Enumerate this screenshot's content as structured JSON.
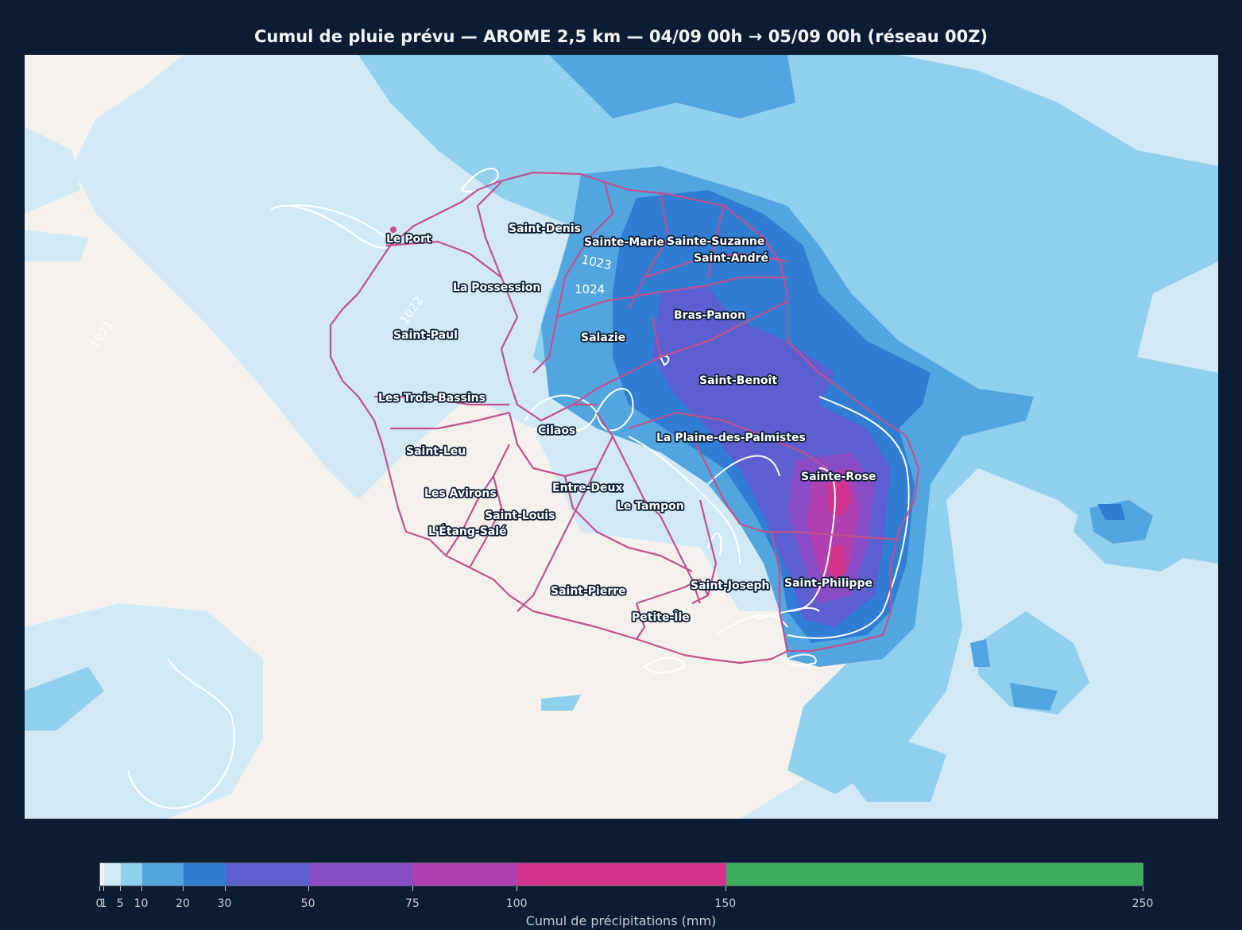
{
  "title": "Cumul de pluie prévu — AROME 2,5 km — 04/09 00h → 05/09 00h (réseau 00Z)",
  "map": {
    "communes": [
      {
        "name": "Le Port"
      },
      {
        "name": "Saint-Denis"
      },
      {
        "name": "Sainte-Marie"
      },
      {
        "name": "Sainte-Suzanne"
      },
      {
        "name": "Saint-André"
      },
      {
        "name": "La Possession"
      },
      {
        "name": "Saint-Paul"
      },
      {
        "name": "Salazie"
      },
      {
        "name": "Bras-Panon"
      },
      {
        "name": "Saint-Benoît"
      },
      {
        "name": "Les Trois-Bassins"
      },
      {
        "name": "Cilaos"
      },
      {
        "name": "La Plaine-des-Palmistes"
      },
      {
        "name": "Saint-Leu"
      },
      {
        "name": "Sainte-Rose"
      },
      {
        "name": "Entre-Deux"
      },
      {
        "name": "Les Avirons"
      },
      {
        "name": "Le Tampon"
      },
      {
        "name": "Saint-Louis"
      },
      {
        "name": "L'Étang-Salé"
      },
      {
        "name": "Saint-Joseph"
      },
      {
        "name": "Saint-Philippe"
      },
      {
        "name": "Saint-Pierre"
      },
      {
        "name": "Petite-Île"
      }
    ],
    "isobar_labels": [
      "1023",
      "1024",
      "1022",
      "1021"
    ],
    "colors": {
      "background": "#0c1d33",
      "land_dry": "#f4f1ec",
      "boundary": "#c2508f",
      "isobar": "#ffffff"
    }
  },
  "colorbar": {
    "label": "Cumul de précipitations (mm)",
    "levels": [
      0,
      1,
      5,
      10,
      20,
      30,
      50,
      75,
      100,
      150,
      250
    ],
    "tick_labels": [
      "0",
      "1",
      "5",
      "10",
      "20",
      "30",
      "50",
      "75",
      "100",
      "150",
      "250"
    ],
    "colors": [
      "#f4f1ec",
      "#d1e8f5",
      "#90cfee",
      "#52a6e0",
      "#2f7ed4",
      "#5b5fcf",
      "#8a4cc6",
      "#b03fb0",
      "#d1348a",
      "#3daf5b"
    ]
  }
}
